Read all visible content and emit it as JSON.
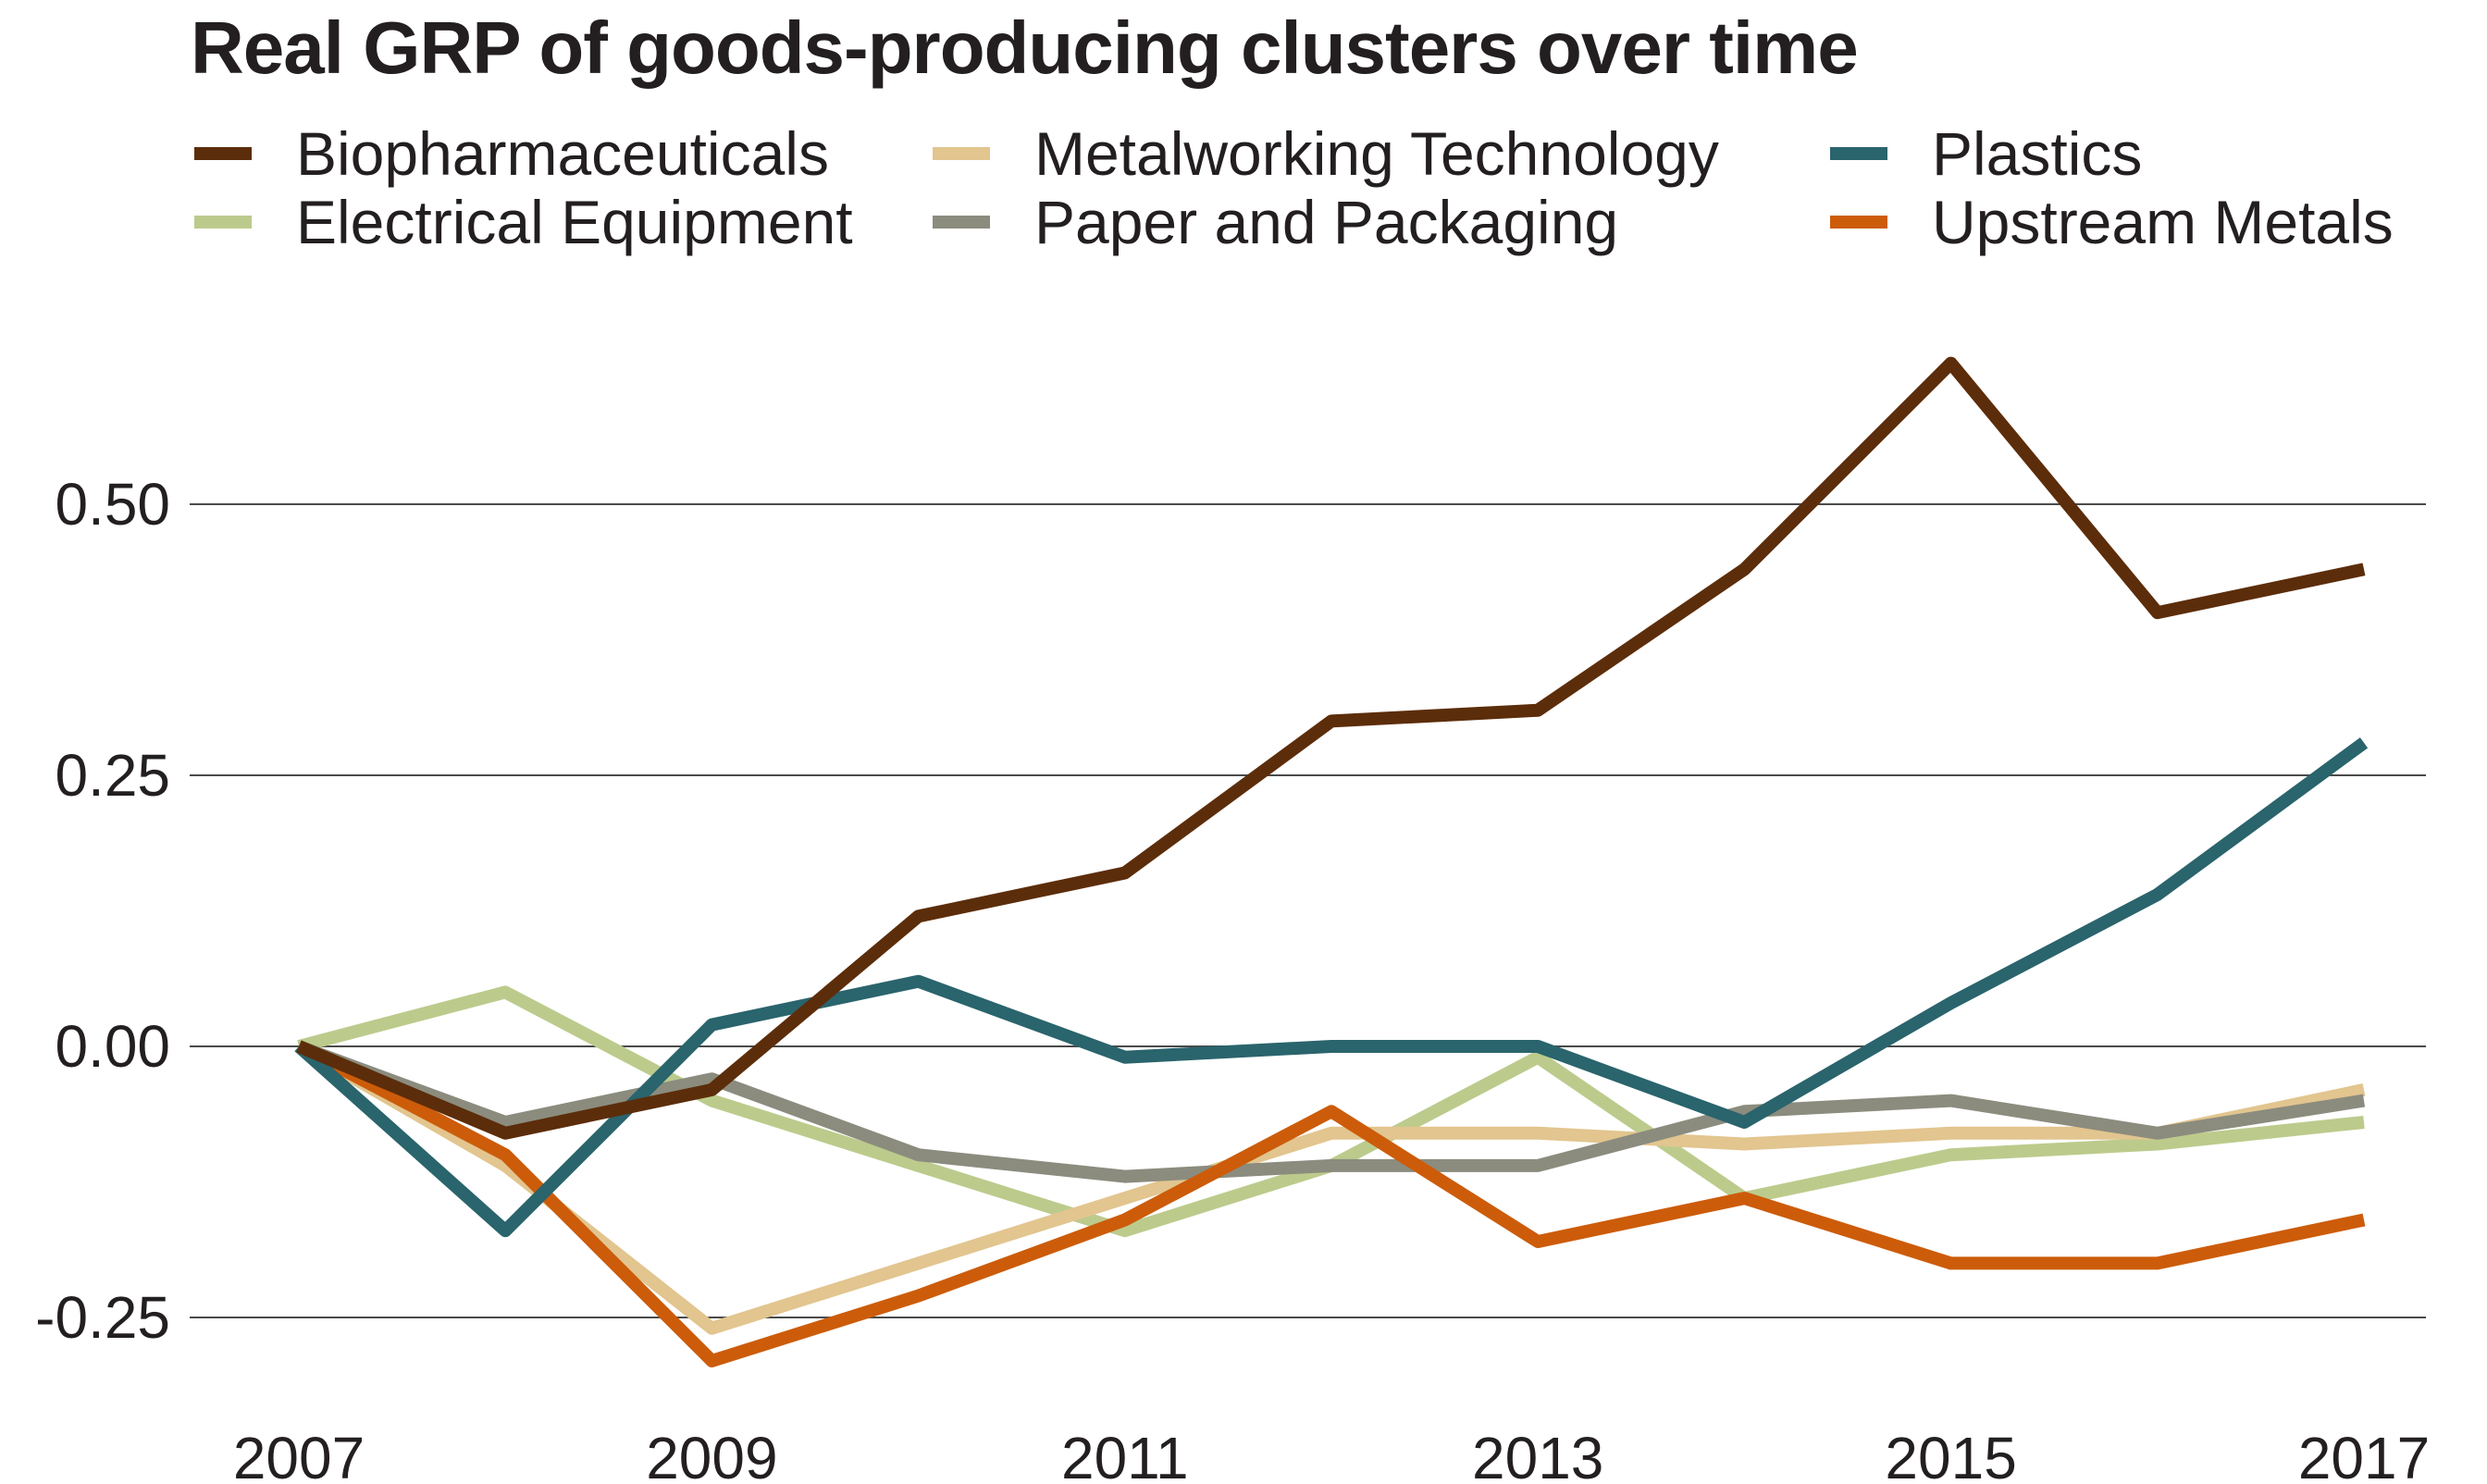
{
  "chart_data": {
    "type": "line",
    "title": "Real GRP of goods-producing clusters over time",
    "xlabel": "",
    "ylabel": "",
    "x": [
      2007,
      2008,
      2009,
      2010,
      2011,
      2012,
      2013,
      2014,
      2015,
      2016,
      2017
    ],
    "xticks": [
      "2007",
      "2009",
      "2011",
      "2013",
      "2015",
      "2017"
    ],
    "yticks": [
      "0.50",
      "0.25",
      "0.00",
      "-0.25"
    ],
    "ytick_values": [
      0.5,
      0.25,
      0.0,
      -0.25
    ],
    "ylim": [
      -0.3,
      0.65
    ],
    "grid": "horizontal",
    "legend_position": "top",
    "series": [
      {
        "name": "Biopharmaceuticals",
        "color": "#5c2d0a",
        "values": [
          0.0,
          -0.08,
          -0.04,
          0.12,
          0.16,
          0.3,
          0.31,
          0.44,
          0.63,
          0.4,
          0.44
        ]
      },
      {
        "name": "Electrical Equipment",
        "color": "#bccb8c",
        "values": [
          0.0,
          0.05,
          -0.05,
          -0.11,
          -0.17,
          -0.11,
          -0.01,
          -0.14,
          -0.1,
          -0.09,
          -0.07
        ]
      },
      {
        "name": "Metalworking Technology",
        "color": "#e2c58f",
        "values": [
          0.0,
          -0.11,
          -0.26,
          -0.2,
          -0.14,
          -0.08,
          -0.08,
          -0.09,
          -0.08,
          -0.08,
          -0.04
        ]
      },
      {
        "name": "Paper and Packaging",
        "color": "#8b8c7e",
        "values": [
          0.0,
          -0.07,
          -0.03,
          -0.1,
          -0.12,
          -0.11,
          -0.11,
          -0.06,
          -0.05,
          -0.08,
          -0.05
        ]
      },
      {
        "name": "Plastics",
        "color": "#2a646c",
        "values": [
          0.0,
          -0.17,
          0.02,
          0.06,
          -0.01,
          0.0,
          0.0,
          -0.07,
          0.04,
          0.14,
          0.28
        ]
      },
      {
        "name": "Upstream Metals",
        "color": "#cc5c0a",
        "values": [
          0.0,
          -0.1,
          -0.29,
          -0.23,
          -0.16,
          -0.06,
          -0.18,
          -0.14,
          -0.2,
          -0.2,
          -0.16
        ]
      }
    ]
  }
}
